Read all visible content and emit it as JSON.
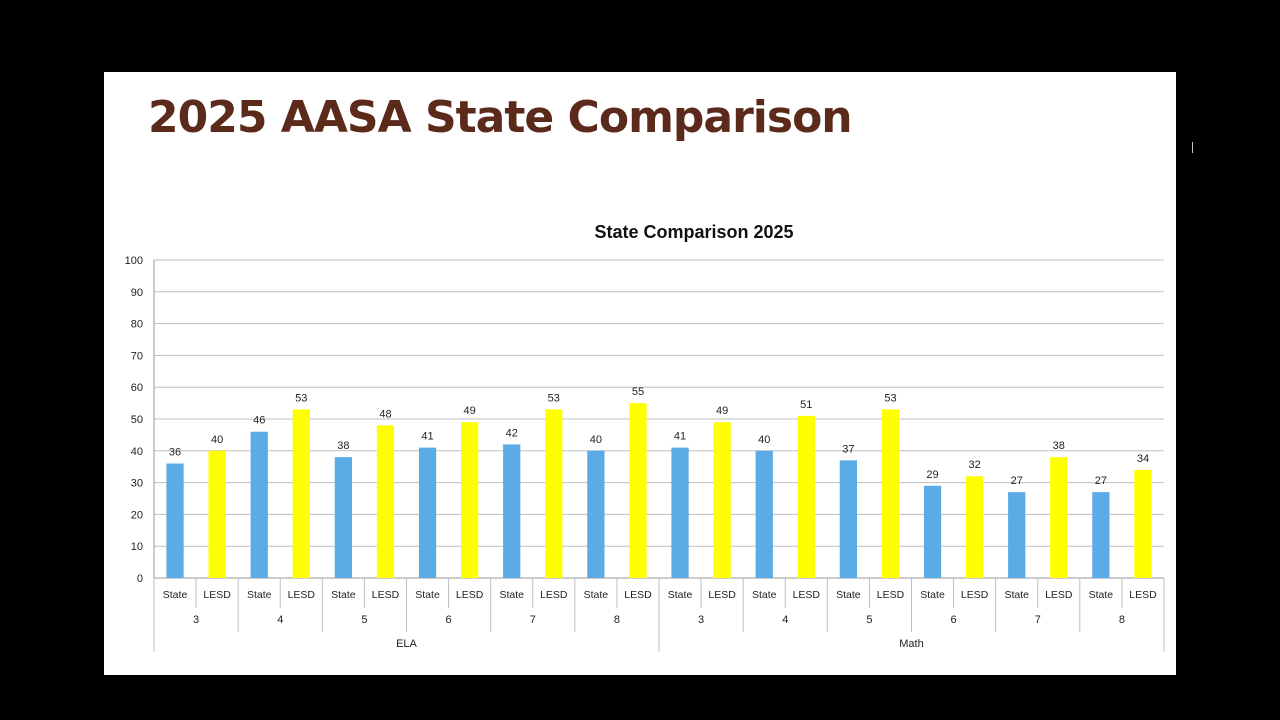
{
  "slide": {
    "title": "2025 AASA State Comparison"
  },
  "colors": {
    "state": "#5aabe6",
    "lesd": "#ffff00",
    "title": "#5b2a1a",
    "grid": "#bfbfbf",
    "axis": "#9a9a9a"
  },
  "chart_data": {
    "type": "bar",
    "title": "State Comparison 2025",
    "xlabel": "",
    "ylabel": "",
    "ylim": [
      0,
      100
    ],
    "yticks": [
      0,
      10,
      20,
      30,
      40,
      50,
      60,
      70,
      80,
      90,
      100
    ],
    "grid": true,
    "legend": "none",
    "subjects": [
      {
        "name": "ELA",
        "grades": [
          {
            "grade": "3",
            "bars": [
              {
                "label": "State",
                "value": 36
              },
              {
                "label": "LESD",
                "value": 40
              }
            ]
          },
          {
            "grade": "4",
            "bars": [
              {
                "label": "State",
                "value": 46
              },
              {
                "label": "LESD",
                "value": 53
              }
            ]
          },
          {
            "grade": "5",
            "bars": [
              {
                "label": "State",
                "value": 38
              },
              {
                "label": "LESD",
                "value": 48
              }
            ]
          },
          {
            "grade": "6",
            "bars": [
              {
                "label": "State",
                "value": 41
              },
              {
                "label": "LESD",
                "value": 49
              }
            ]
          },
          {
            "grade": "7",
            "bars": [
              {
                "label": "State",
                "value": 42
              },
              {
                "label": "LESD",
                "value": 53
              }
            ]
          },
          {
            "grade": "8",
            "bars": [
              {
                "label": "State",
                "value": 40
              },
              {
                "label": "LESD",
                "value": 55
              }
            ]
          }
        ]
      },
      {
        "name": "Math",
        "grades": [
          {
            "grade": "3",
            "bars": [
              {
                "label": "State",
                "value": 41
              },
              {
                "label": "LESD",
                "value": 49
              }
            ]
          },
          {
            "grade": "4",
            "bars": [
              {
                "label": "State",
                "value": 40
              },
              {
                "label": "LESD",
                "value": 51
              }
            ]
          },
          {
            "grade": "5",
            "bars": [
              {
                "label": "State",
                "value": 37
              },
              {
                "label": "LESD",
                "value": 53
              }
            ]
          },
          {
            "grade": "6",
            "bars": [
              {
                "label": "State",
                "value": 29
              },
              {
                "label": "LESD",
                "value": 32
              }
            ]
          },
          {
            "grade": "7",
            "bars": [
              {
                "label": "State",
                "value": 27
              },
              {
                "label": "LESD",
                "value": 38
              }
            ]
          },
          {
            "grade": "8",
            "bars": [
              {
                "label": "State",
                "value": 27
              },
              {
                "label": "LESD",
                "value": 34
              }
            ]
          }
        ]
      }
    ]
  }
}
